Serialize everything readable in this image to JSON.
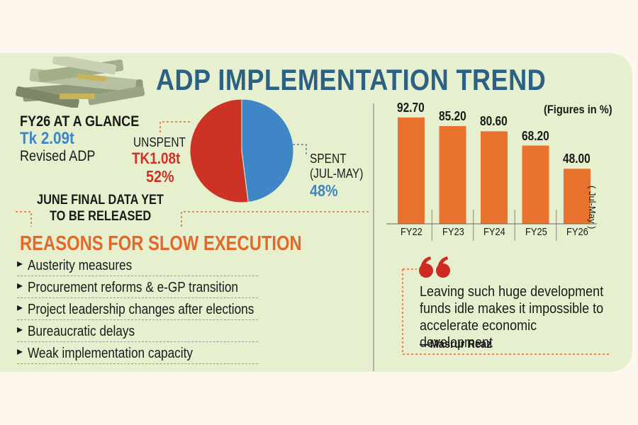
{
  "title": "ADP IMPLEMENTATION TREND",
  "glance": {
    "heading": "FY26 AT A GLANCE",
    "amount": "Tk 2.09t",
    "label": "Revised ADP"
  },
  "pie_labels": {
    "unspent_label": "UNSPENT",
    "unspent_amount": "TK1.08t",
    "unspent_pct": "52%",
    "spent_label": "SPENT",
    "spent_period": "(JUL-MAY)",
    "spent_pct": "48%"
  },
  "note": {
    "line1": "JUNE FINAL DATA YET",
    "line2": "TO BE RELEASED"
  },
  "reasons": {
    "heading": "REASONS FOR SLOW EXECUTION",
    "items": [
      "Austerity measures",
      "Procurement reforms & e-GP transition",
      "Project leadership changes after elections",
      "Bureaucratic delays",
      "Weak implementation capacity"
    ]
  },
  "quote": {
    "text": "Leaving such huge development funds idle makes it impossible to accelerate economic development",
    "author": "—Masrur Reaz"
  },
  "colors": {
    "panel": "#e6f0cf",
    "title": "#2c6184",
    "spent": "#3f86c6",
    "unspent": "#cc3325",
    "bar": "#ea722f",
    "accent": "#e3692a"
  },
  "icons": {
    "money": "money-stack-icon",
    "quote": "quote-marks-icon",
    "bullet": "triangle-bullet-icon"
  },
  "chart_data": [
    {
      "type": "pie",
      "title": "",
      "slices": [
        {
          "name": "SPENT",
          "value": 48,
          "color": "#3f86c6"
        },
        {
          "name": "UNSPENT",
          "value": 52,
          "color": "#cc3325"
        }
      ]
    },
    {
      "type": "bar",
      "title": "",
      "unit_note": "(Figures in %)",
      "annotation": "( Jul-May )",
      "categories": [
        "FY22",
        "FY23",
        "FY24",
        "FY25",
        "FY26"
      ],
      "values": [
        92.7,
        85.2,
        80.6,
        68.2,
        48.0
      ],
      "value_labels": [
        "92.70",
        "85.20",
        "80.60",
        "68.20",
        "48.00"
      ],
      "ylim": [
        0,
        100
      ],
      "grid": false
    }
  ]
}
